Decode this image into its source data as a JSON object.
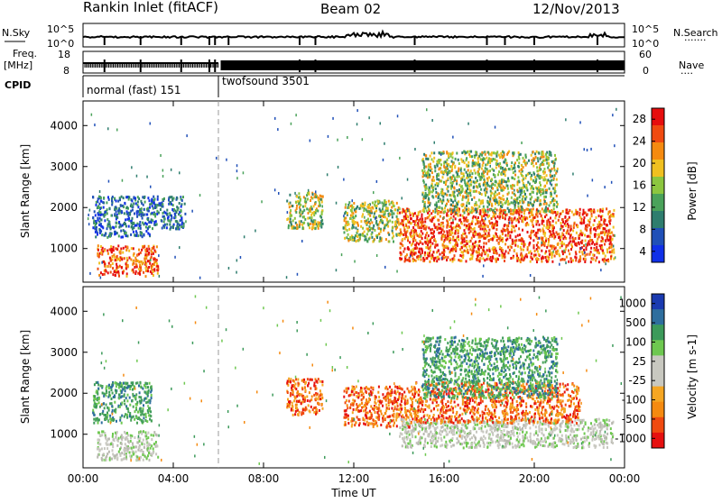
{
  "header": {
    "station": "Rankin Inlet (fitACF)",
    "beam": "Beam 02",
    "date": "12/Nov/2013"
  },
  "side_labels": {
    "nsky": "N.Sky",
    "freq_line1": "Freq.",
    "freq_line2": "[MHz]",
    "cpid": "CPID",
    "nsearch": "N.Search",
    "nave": "Nave",
    "dotted": "·······",
    "dotted_short": "····"
  },
  "cpid_modes": [
    {
      "label": "normal (fast) 151",
      "start_hour": 0.0
    },
    {
      "label": "twofsound 3501",
      "start_hour": 6.0
    }
  ],
  "strip_ticks": {
    "noise_left": [
      "10^5",
      "10^0"
    ],
    "noise_right": [
      "10^5",
      "10^0"
    ],
    "freq_left": [
      "18",
      "8"
    ],
    "nave_right": [
      "60",
      "0"
    ]
  },
  "chart_data": [
    {
      "type": "heatmap",
      "panel": "power",
      "xlabel": "",
      "ylabel": "Slant Range [km]",
      "x_range_hours": [
        0,
        24
      ],
      "y_range_km": [
        180,
        4600
      ],
      "y_ticks": [
        "1000",
        "2000",
        "3000",
        "4000"
      ],
      "colorbar": {
        "label": "Power [dB]",
        "ticks": [
          "28",
          "24",
          "20",
          "16",
          "12",
          "8",
          "4"
        ],
        "range": [
          0,
          32
        ],
        "colors": [
          "#1030e8",
          "#2050b8",
          "#2e7d6e",
          "#4aa25a",
          "#8cc63f",
          "#f0c020",
          "#f58a10",
          "#f04a10",
          "#e60e0e"
        ]
      },
      "echo_regions": [
        {
          "x": [
            0.6,
            3.3
          ],
          "y_km": [
            350,
            1100
          ],
          "level": "high"
        },
        {
          "x": [
            0.4,
            3.0
          ],
          "y_km": [
            1300,
            2300
          ],
          "level": "low"
        },
        {
          "x": [
            3.0,
            4.5
          ],
          "y_km": [
            1500,
            2300
          ],
          "level": "low"
        },
        {
          "x": [
            9.0,
            10.6
          ],
          "y_km": [
            1500,
            2400
          ],
          "level": "medium"
        },
        {
          "x": [
            11.5,
            14.0
          ],
          "y_km": [
            1200,
            2200
          ],
          "level": "medium"
        },
        {
          "x": [
            14.0,
            23.5
          ],
          "y_km": [
            700,
            2000
          ],
          "level": "high"
        },
        {
          "x": [
            15.0,
            21.0
          ],
          "y_km": [
            1900,
            3400
          ],
          "level": "medium"
        }
      ]
    },
    {
      "type": "heatmap",
      "panel": "velocity",
      "xlabel": "Time UT",
      "ylabel": "Slant Range [km]",
      "x_ticks": [
        "00:00",
        "04:00",
        "08:00",
        "12:00",
        "16:00",
        "20:00",
        "00:00"
      ],
      "x_range_hours": [
        0,
        24
      ],
      "y_range_km": [
        180,
        4600
      ],
      "y_ticks": [
        "1000",
        "2000",
        "3000",
        "4000"
      ],
      "colorbar": {
        "label": "Velocity [m s-1]",
        "ticks": [
          "1000",
          "500",
          "100",
          "25",
          "-25",
          "-100",
          "-500",
          "-1000"
        ],
        "range": [
          -1200,
          1200
        ],
        "colors": [
          "#e61010",
          "#f04a10",
          "#f58a10",
          "#f5a623",
          "#c8c8c0",
          "#c8c8c0",
          "#6ec850",
          "#3c9a5a",
          "#2e6e9e",
          "#1a3ab0"
        ]
      },
      "echo_regions": [
        {
          "x": [
            0.6,
            3.3
          ],
          "y_km": [
            400,
            1100
          ],
          "level": "ground"
        },
        {
          "x": [
            0.4,
            3.0
          ],
          "y_km": [
            1300,
            2300
          ],
          "level": "toward"
        },
        {
          "x": [
            9.0,
            10.6
          ],
          "y_km": [
            1500,
            2400
          ],
          "level": "away"
        },
        {
          "x": [
            11.5,
            14.5
          ],
          "y_km": [
            1200,
            2200
          ],
          "level": "away"
        },
        {
          "x": [
            14.0,
            23.5
          ],
          "y_km": [
            700,
            1400
          ],
          "level": "ground"
        },
        {
          "x": [
            14.5,
            22.0
          ],
          "y_km": [
            1300,
            2300
          ],
          "level": "away"
        },
        {
          "x": [
            15.0,
            21.0
          ],
          "y_km": [
            1900,
            3400
          ],
          "level": "toward"
        }
      ]
    }
  ]
}
